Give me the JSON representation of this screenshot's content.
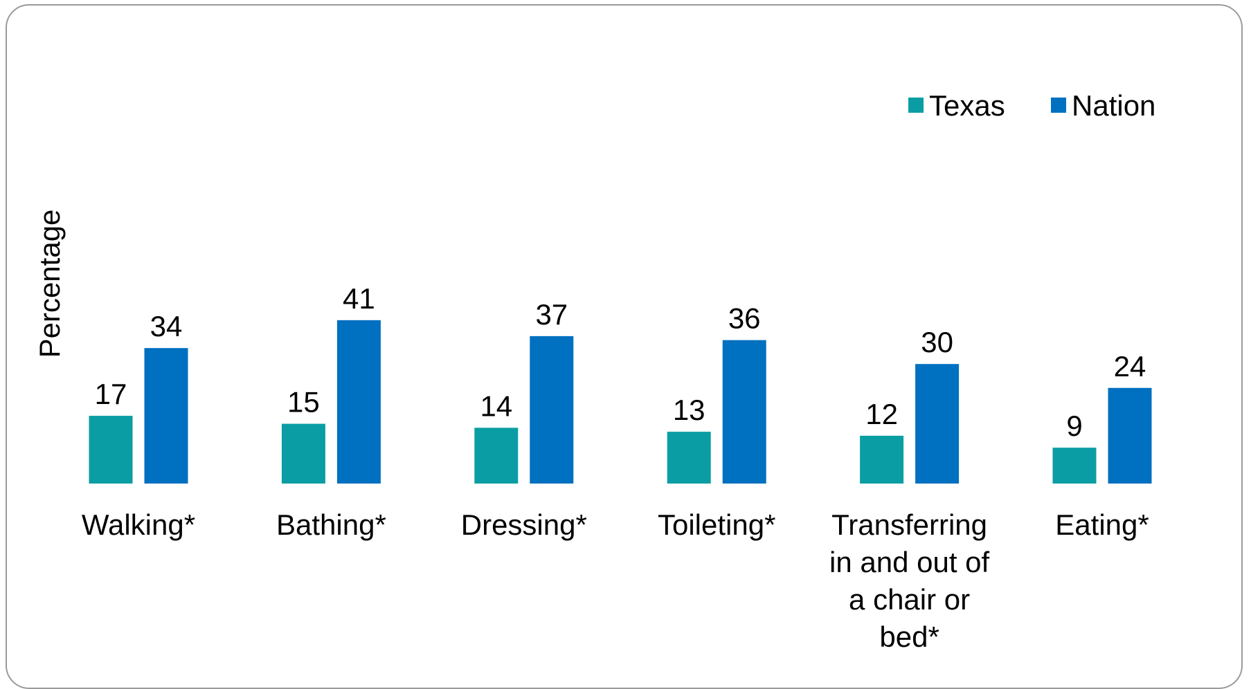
{
  "chart_data": {
    "type": "bar",
    "title": "",
    "xlabel": "",
    "ylabel": "Percentage",
    "categories": [
      "Walking*",
      "Bathing*",
      "Dressing*",
      "Toileting*",
      "Transferring in and out of a chair or bed*",
      "Eating*"
    ],
    "category_lines": [
      [
        "Walking*"
      ],
      [
        "Bathing*"
      ],
      [
        "Dressing*"
      ],
      [
        "Toileting*"
      ],
      [
        "Transferring",
        "in and out of",
        "a chair or",
        "bed*"
      ],
      [
        "Eating*"
      ]
    ],
    "series": [
      {
        "name": "Texas",
        "color": "#0a9ea4",
        "values": [
          17,
          15,
          14,
          13,
          12,
          9
        ]
      },
      {
        "name": "Nation",
        "color": "#0070c0",
        "values": [
          34,
          41,
          37,
          36,
          30,
          24
        ]
      }
    ],
    "ylim": [
      0,
      55
    ],
    "grid": false,
    "legend_position": "top-right",
    "data_labels": true
  }
}
